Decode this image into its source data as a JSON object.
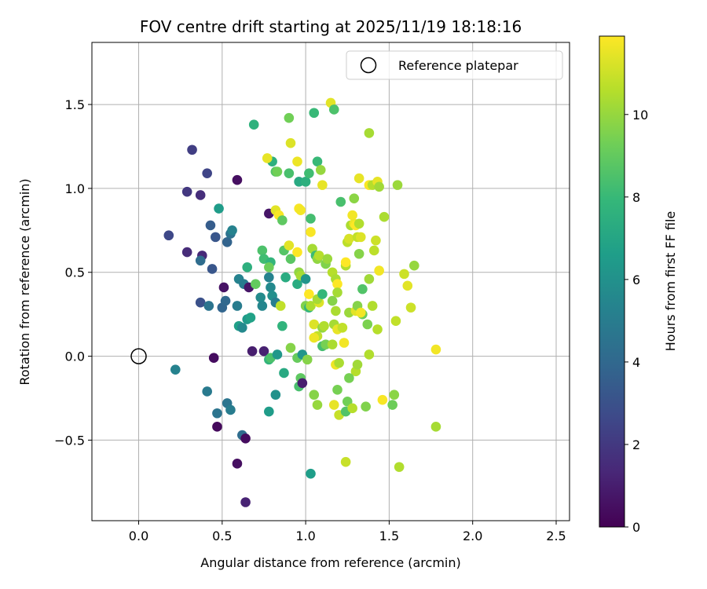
{
  "chart_data": {
    "type": "scatter",
    "title": "FOV centre drift starting at 2025/11/19 18:18:16",
    "xlabel": "Angular distance from reference (arcmin)",
    "ylabel": "Rotation from reference (arcmin)",
    "xlim": [
      -0.28,
      2.58
    ],
    "ylim": [
      -0.98,
      1.87
    ],
    "xticks": [
      0.0,
      0.5,
      1.0,
      1.5,
      2.0,
      2.5
    ],
    "xtick_labels": [
      "0.0",
      "0.5",
      "1.0",
      "1.5",
      "2.0",
      "2.5"
    ],
    "yticks": [
      -0.5,
      0.0,
      0.5,
      1.0,
      1.5
    ],
    "ytick_labels": [
      "−0.5",
      "0.0",
      "0.5",
      "1.0",
      "1.5"
    ],
    "grid": true,
    "legend": {
      "position": "top-right",
      "label": "Reference platepar"
    },
    "reference_point": {
      "x": 0.0,
      "y": 0.0
    },
    "colorbar": {
      "label": "Hours from first FF file",
      "min": 0,
      "max": 11.9,
      "ticks": [
        0,
        2,
        4,
        6,
        8,
        10
      ],
      "tick_labels": [
        "0",
        "2",
        "4",
        "6",
        "8",
        "10"
      ],
      "colormap": [
        "#440154",
        "#482777",
        "#3e4989",
        "#31688e",
        "#26828e",
        "#1f9e89",
        "#35b779",
        "#6ece58",
        "#b5de2b",
        "#fde725"
      ]
    },
    "points": [
      {
        "x": 0.32,
        "y": 1.23,
        "h": 2.2
      },
      {
        "x": 0.41,
        "y": 1.09,
        "h": 2.5
      },
      {
        "x": 0.29,
        "y": 0.98,
        "h": 2.0
      },
      {
        "x": 0.37,
        "y": 0.96,
        "h": 1.6
      },
      {
        "x": 0.59,
        "y": 1.05,
        "h": 0.5
      },
      {
        "x": 0.18,
        "y": 0.72,
        "h": 2.6
      },
      {
        "x": 0.43,
        "y": 0.78,
        "h": 3.5
      },
      {
        "x": 0.46,
        "y": 0.71,
        "h": 3.2
      },
      {
        "x": 0.53,
        "y": 0.68,
        "h": 3.8
      },
      {
        "x": 0.55,
        "y": 0.73,
        "h": 4.5
      },
      {
        "x": 0.56,
        "y": 0.75,
        "h": 5.3
      },
      {
        "x": 0.48,
        "y": 0.88,
        "h": 6.5
      },
      {
        "x": 0.29,
        "y": 0.62,
        "h": 1.5
      },
      {
        "x": 0.38,
        "y": 0.6,
        "h": 1.4
      },
      {
        "x": 0.37,
        "y": 0.57,
        "h": 4.2
      },
      {
        "x": 0.44,
        "y": 0.52,
        "h": 3.2
      },
      {
        "x": 0.51,
        "y": 0.41,
        "h": 0.6
      },
      {
        "x": 0.37,
        "y": 0.32,
        "h": 3.0
      },
      {
        "x": 0.42,
        "y": 0.3,
        "h": 4.6
      },
      {
        "x": 0.5,
        "y": 0.29,
        "h": 3.9
      },
      {
        "x": 0.52,
        "y": 0.33,
        "h": 4.0
      },
      {
        "x": 0.6,
        "y": 0.46,
        "h": 5.3
      },
      {
        "x": 0.59,
        "y": 0.3,
        "h": 5.0
      },
      {
        "x": 0.63,
        "y": 0.43,
        "h": 5.0
      },
      {
        "x": 0.66,
        "y": 0.41,
        "h": 0.7
      },
      {
        "x": 0.65,
        "y": 0.53,
        "h": 7.5
      },
      {
        "x": 0.69,
        "y": 1.38,
        "h": 7.6
      },
      {
        "x": 0.7,
        "y": 0.43,
        "h": 9.0
      },
      {
        "x": 0.6,
        "y": 0.18,
        "h": 6.7
      },
      {
        "x": 0.62,
        "y": 0.17,
        "h": 5.6
      },
      {
        "x": 0.65,
        "y": 0.22,
        "h": 6.4
      },
      {
        "x": 0.67,
        "y": 0.23,
        "h": 6.8
      },
      {
        "x": 0.45,
        "y": -0.01,
        "h": 0.4
      },
      {
        "x": 0.22,
        "y": -0.08,
        "h": 5.3
      },
      {
        "x": 0.41,
        "y": -0.21,
        "h": 4.9
      },
      {
        "x": 0.47,
        "y": -0.34,
        "h": 4.6
      },
      {
        "x": 0.53,
        "y": -0.28,
        "h": 4.6
      },
      {
        "x": 0.55,
        "y": -0.32,
        "h": 5.0
      },
      {
        "x": 0.47,
        "y": -0.42,
        "h": 0.3
      },
      {
        "x": 0.62,
        "y": -0.47,
        "h": 4.2
      },
      {
        "x": 0.64,
        "y": -0.49,
        "h": 0.4
      },
      {
        "x": 0.59,
        "y": -0.64,
        "h": 0.5
      },
      {
        "x": 0.64,
        "y": -0.87,
        "h": 1.2
      },
      {
        "x": 0.68,
        "y": 0.03,
        "h": 1.0
      },
      {
        "x": 0.75,
        "y": 0.03,
        "h": 1.1
      },
      {
        "x": 0.78,
        "y": 0.85,
        "h": 0.7
      },
      {
        "x": 0.73,
        "y": 0.35,
        "h": 5.7
      },
      {
        "x": 0.74,
        "y": 0.3,
        "h": 5.5
      },
      {
        "x": 0.78,
        "y": 0.47,
        "h": 5.3
      },
      {
        "x": 0.79,
        "y": 0.41,
        "h": 5.6
      },
      {
        "x": 0.8,
        "y": 0.36,
        "h": 5.9
      },
      {
        "x": 0.82,
        "y": 0.32,
        "h": 5.1
      },
      {
        "x": 0.74,
        "y": 0.63,
        "h": 8.5
      },
      {
        "x": 0.75,
        "y": 0.58,
        "h": 8.2
      },
      {
        "x": 0.79,
        "y": 0.56,
        "h": 7.8
      },
      {
        "x": 0.78,
        "y": 0.53,
        "h": 9.2
      },
      {
        "x": 0.8,
        "y": 1.16,
        "h": 7.5
      },
      {
        "x": 0.77,
        "y": 1.18,
        "h": 11.5
      },
      {
        "x": 0.82,
        "y": 1.1,
        "h": 8.7
      },
      {
        "x": 0.83,
        "y": 1.1,
        "h": 9.3
      },
      {
        "x": 0.82,
        "y": 0.87,
        "h": 11.4
      },
      {
        "x": 0.84,
        "y": 0.84,
        "h": 11.8
      },
      {
        "x": 0.86,
        "y": 0.81,
        "h": 8.9
      },
      {
        "x": 0.85,
        "y": 0.3,
        "h": 10.8
      },
      {
        "x": 0.86,
        "y": 0.18,
        "h": 7.7
      },
      {
        "x": 0.78,
        "y": -0.02,
        "h": 7.8
      },
      {
        "x": 0.79,
        "y": -0.01,
        "h": 8.5
      },
      {
        "x": 0.83,
        "y": 0.01,
        "h": 6.3
      },
      {
        "x": 0.82,
        "y": -0.23,
        "h": 6.0
      },
      {
        "x": 0.78,
        "y": -0.33,
        "h": 6.5
      },
      {
        "x": 0.87,
        "y": -0.1,
        "h": 7.2
      },
      {
        "x": 0.88,
        "y": 0.47,
        "h": 7.3
      },
      {
        "x": 0.87,
        "y": 0.63,
        "h": 8.7
      },
      {
        "x": 0.9,
        "y": 0.66,
        "h": 11.4
      },
      {
        "x": 0.91,
        "y": 0.58,
        "h": 8.8
      },
      {
        "x": 0.9,
        "y": 1.09,
        "h": 8.4
      },
      {
        "x": 0.91,
        "y": 1.27,
        "h": 11.3
      },
      {
        "x": 0.9,
        "y": 1.42,
        "h": 9.3
      },
      {
        "x": 0.95,
        "y": 1.16,
        "h": 11.6
      },
      {
        "x": 0.96,
        "y": 1.04,
        "h": 7.2
      },
      {
        "x": 0.96,
        "y": 0.88,
        "h": 11.8
      },
      {
        "x": 0.97,
        "y": 0.87,
        "h": 11.7
      },
      {
        "x": 0.95,
        "y": 0.62,
        "h": 11.9
      },
      {
        "x": 0.96,
        "y": 0.5,
        "h": 9.9
      },
      {
        "x": 0.95,
        "y": 0.43,
        "h": 7.3
      },
      {
        "x": 0.97,
        "y": 0.48,
        "h": 10.3
      },
      {
        "x": 1.0,
        "y": 0.46,
        "h": 6.2
      },
      {
        "x": 1.0,
        "y": 0.3,
        "h": 9.6
      },
      {
        "x": 1.02,
        "y": 0.29,
        "h": 7.8
      },
      {
        "x": 1.02,
        "y": 0.37,
        "h": 11.9
      },
      {
        "x": 1.03,
        "y": 0.3,
        "h": 10.4
      },
      {
        "x": 0.91,
        "y": 0.05,
        "h": 9.7
      },
      {
        "x": 0.95,
        "y": -0.01,
        "h": 9.1
      },
      {
        "x": 0.98,
        "y": 0.01,
        "h": 6.2
      },
      {
        "x": 0.97,
        "y": -0.13,
        "h": 8.9
      },
      {
        "x": 0.96,
        "y": -0.18,
        "h": 8.4
      },
      {
        "x": 1.01,
        "y": -0.02,
        "h": 9.7
      },
      {
        "x": 0.98,
        "y": -0.16,
        "h": 1.0
      },
      {
        "x": 1.0,
        "y": 1.04,
        "h": 7.5
      },
      {
        "x": 1.02,
        "y": 1.09,
        "h": 8.2
      },
      {
        "x": 1.03,
        "y": 0.82,
        "h": 8.3
      },
      {
        "x": 1.03,
        "y": 0.74,
        "h": 11.8
      },
      {
        "x": 1.04,
        "y": 0.64,
        "h": 10.3
      },
      {
        "x": 1.05,
        "y": 1.45,
        "h": 8.0
      },
      {
        "x": 1.07,
        "y": 1.16,
        "h": 8.0
      },
      {
        "x": 1.09,
        "y": 1.11,
        "h": 10.0
      },
      {
        "x": 1.1,
        "y": 1.02,
        "h": 11.5
      },
      {
        "x": 1.06,
        "y": 0.6,
        "h": 8.1
      },
      {
        "x": 1.07,
        "y": 0.58,
        "h": 9.9
      },
      {
        "x": 1.08,
        "y": 0.6,
        "h": 10.6
      },
      {
        "x": 1.08,
        "y": 0.32,
        "h": 11.3
      },
      {
        "x": 1.07,
        "y": 0.34,
        "h": 10.3
      },
      {
        "x": 1.1,
        "y": 0.37,
        "h": 7.9
      },
      {
        "x": 1.05,
        "y": 0.19,
        "h": 11.3
      },
      {
        "x": 1.07,
        "y": 0.12,
        "h": 10.8
      },
      {
        "x": 1.05,
        "y": 0.11,
        "h": 11.6
      },
      {
        "x": 1.1,
        "y": 0.17,
        "h": 9.9
      },
      {
        "x": 1.11,
        "y": 0.18,
        "h": 10.5
      },
      {
        "x": 1.1,
        "y": 0.06,
        "h": 8.3
      },
      {
        "x": 1.12,
        "y": 0.07,
        "h": 9.4
      },
      {
        "x": 1.05,
        "y": -0.23,
        "h": 9.7
      },
      {
        "x": 1.07,
        "y": -0.29,
        "h": 10.0
      },
      {
        "x": 1.03,
        "y": -0.7,
        "h": 6.6
      },
      {
        "x": 1.12,
        "y": 0.55,
        "h": 9.6
      },
      {
        "x": 1.13,
        "y": 0.58,
        "h": 10.1
      },
      {
        "x": 1.15,
        "y": 1.51,
        "h": 11.4
      },
      {
        "x": 1.17,
        "y": 1.47,
        "h": 8.5
      },
      {
        "x": 1.16,
        "y": 0.5,
        "h": 10.6
      },
      {
        "x": 1.18,
        "y": 0.46,
        "h": 10.4
      },
      {
        "x": 1.19,
        "y": 0.43,
        "h": 11.9
      },
      {
        "x": 1.16,
        "y": 0.33,
        "h": 9.7
      },
      {
        "x": 1.19,
        "y": 0.38,
        "h": 10.3
      },
      {
        "x": 1.18,
        "y": 0.27,
        "h": 10.4
      },
      {
        "x": 1.17,
        "y": 0.19,
        "h": 10.3
      },
      {
        "x": 1.19,
        "y": 0.16,
        "h": 11.5
      },
      {
        "x": 1.22,
        "y": 0.17,
        "h": 10.8
      },
      {
        "x": 1.16,
        "y": 0.07,
        "h": 10.4
      },
      {
        "x": 1.23,
        "y": 0.08,
        "h": 11.7
      },
      {
        "x": 1.18,
        "y": -0.05,
        "h": 11.6
      },
      {
        "x": 1.2,
        "y": -0.04,
        "h": 10.4
      },
      {
        "x": 1.19,
        "y": -0.2,
        "h": 9.4
      },
      {
        "x": 1.17,
        "y": -0.29,
        "h": 11.5
      },
      {
        "x": 1.2,
        "y": -0.35,
        "h": 10.9
      },
      {
        "x": 1.24,
        "y": -0.33,
        "h": 8.6
      },
      {
        "x": 1.25,
        "y": -0.27,
        "h": 9.3
      },
      {
        "x": 1.24,
        "y": -0.63,
        "h": 10.9
      },
      {
        "x": 1.21,
        "y": 0.92,
        "h": 8.4
      },
      {
        "x": 1.24,
        "y": 0.54,
        "h": 10.5
      },
      {
        "x": 1.24,
        "y": 0.56,
        "h": 11.9
      },
      {
        "x": 1.25,
        "y": 0.68,
        "h": 10.7
      },
      {
        "x": 1.26,
        "y": 0.7,
        "h": 11.2
      },
      {
        "x": 1.27,
        "y": 0.78,
        "h": 10.4
      },
      {
        "x": 1.28,
        "y": 0.84,
        "h": 11.7
      },
      {
        "x": 1.29,
        "y": 0.94,
        "h": 9.8
      },
      {
        "x": 1.29,
        "y": 0.79,
        "h": 11.6
      },
      {
        "x": 1.3,
        "y": 0.78,
        "h": 11.9
      },
      {
        "x": 1.32,
        "y": 0.79,
        "h": 10.5
      },
      {
        "x": 1.31,
        "y": 0.71,
        "h": 10.8
      },
      {
        "x": 1.33,
        "y": 0.71,
        "h": 11.3
      },
      {
        "x": 1.32,
        "y": 0.61,
        "h": 9.7
      },
      {
        "x": 1.26,
        "y": 0.26,
        "h": 10.1
      },
      {
        "x": 1.3,
        "y": 0.27,
        "h": 11.4
      },
      {
        "x": 1.31,
        "y": 0.3,
        "h": 9.7
      },
      {
        "x": 1.34,
        "y": 0.25,
        "h": 9.2
      },
      {
        "x": 1.33,
        "y": 0.26,
        "h": 11.7
      },
      {
        "x": 1.34,
        "y": 0.4,
        "h": 8.6
      },
      {
        "x": 1.37,
        "y": 0.19,
        "h": 9.5
      },
      {
        "x": 1.3,
        "y": -0.09,
        "h": 10.6
      },
      {
        "x": 1.28,
        "y": -0.31,
        "h": 10.6
      },
      {
        "x": 1.31,
        "y": -0.05,
        "h": 10.2
      },
      {
        "x": 1.26,
        "y": -0.13,
        "h": 9.4
      },
      {
        "x": 1.36,
        "y": -0.3,
        "h": 9.6
      },
      {
        "x": 1.32,
        "y": 1.06,
        "h": 11.5
      },
      {
        "x": 1.38,
        "y": 1.02,
        "h": 11.8
      },
      {
        "x": 1.4,
        "y": 1.02,
        "h": 10.6
      },
      {
        "x": 1.43,
        "y": 1.04,
        "h": 11.5
      },
      {
        "x": 1.44,
        "y": 1.01,
        "h": 10.2
      },
      {
        "x": 1.38,
        "y": 1.33,
        "h": 10.3
      },
      {
        "x": 1.38,
        "y": 0.46,
        "h": 10.2
      },
      {
        "x": 1.4,
        "y": 0.3,
        "h": 10.5
      },
      {
        "x": 1.41,
        "y": 0.63,
        "h": 10.7
      },
      {
        "x": 1.42,
        "y": 0.69,
        "h": 11.0
      },
      {
        "x": 1.43,
        "y": 0.16,
        "h": 10.6
      },
      {
        "x": 1.38,
        "y": 0.01,
        "h": 10.5
      },
      {
        "x": 1.44,
        "y": 0.51,
        "h": 11.7
      },
      {
        "x": 1.46,
        "y": -0.26,
        "h": 11.8
      },
      {
        "x": 1.47,
        "y": 0.83,
        "h": 10.4
      },
      {
        "x": 1.53,
        "y": -0.23,
        "h": 9.8
      },
      {
        "x": 1.52,
        "y": -0.29,
        "h": 9.2
      },
      {
        "x": 1.54,
        "y": 0.21,
        "h": 10.8
      },
      {
        "x": 1.55,
        "y": 1.02,
        "h": 10.1
      },
      {
        "x": 1.56,
        "y": -0.66,
        "h": 10.5
      },
      {
        "x": 1.59,
        "y": 0.49,
        "h": 11.0
      },
      {
        "x": 1.61,
        "y": 0.42,
        "h": 11.4
      },
      {
        "x": 1.63,
        "y": 0.29,
        "h": 11.0
      },
      {
        "x": 1.65,
        "y": 0.54,
        "h": 10.0
      },
      {
        "x": 1.78,
        "y": 0.04,
        "h": 11.7
      },
      {
        "x": 1.78,
        "y": -0.42,
        "h": 10.3
      }
    ]
  }
}
